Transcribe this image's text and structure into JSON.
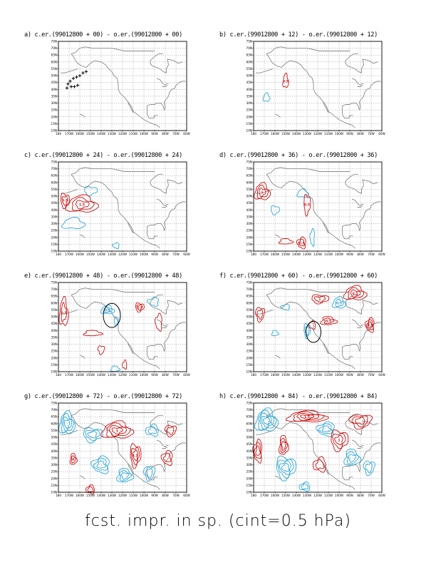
{
  "footer": "fcst. impr. in sp. (cint=0.5 hPa)",
  "colors": {
    "positive": "#cc1111",
    "negative": "#2ea8d8",
    "coast": "#8a8a8a",
    "grid": "#999999",
    "track": "#000000",
    "circle": "#000000"
  },
  "chart_data": [
    {
      "id": "a",
      "type": "contour",
      "title": "a) c.er.(99012800 + 00) - o.er.(99012800 + 00)",
      "lead_hours": 0,
      "x_ticks": [
        "180",
        "170W",
        "160W",
        "150W",
        "140W",
        "130W",
        "120W",
        "110W",
        "100W",
        "90W",
        "80W",
        "70W",
        "60W"
      ],
      "y_ticks": [
        "10N",
        "15N",
        "20N",
        "25N",
        "30N",
        "35N",
        "40N",
        "45N",
        "50N",
        "55N",
        "60N",
        "65N",
        "70N",
        "75N"
      ],
      "xlim": [
        -180,
        -60
      ],
      "ylim": [
        10,
        75
      ],
      "contour_interval_hPa": 0.5,
      "positive": [],
      "negative": [],
      "track": [
        [
          -172,
          41
        ],
        [
          -171,
          44
        ],
        [
          -169,
          46
        ],
        [
          -166,
          48
        ],
        [
          -163,
          49
        ],
        [
          -160,
          50
        ],
        [
          -157,
          52
        ],
        [
          -154,
          53
        ],
        [
          -168,
          42
        ],
        [
          -165,
          42
        ],
        [
          -162,
          43
        ]
      ],
      "circle": null
    },
    {
      "id": "b",
      "type": "contour",
      "title": "b) c.er.(99012800 + 12) - o.er.(99012800 + 12)",
      "lead_hours": 12,
      "x_ticks": [
        "180",
        "170W",
        "160W",
        "150W",
        "140W",
        "130W",
        "120W",
        "110W",
        "100W",
        "90W",
        "80W",
        "70W",
        "60W"
      ],
      "y_ticks": [
        "10N",
        "15N",
        "20N",
        "25N",
        "30N",
        "35N",
        "40N",
        "45N",
        "50N",
        "55N",
        "60N",
        "65N",
        "70N",
        "75N"
      ],
      "xlim": [
        -180,
        -60
      ],
      "ylim": [
        10,
        75
      ],
      "contour_interval_hPa": 0.5,
      "positive": [
        {
          "lon": -150,
          "lat": 46,
          "rx": 2.5,
          "ry": 5,
          "n": 1,
          "label": "0.5"
        }
      ],
      "negative": [
        {
          "lon": -168,
          "lat": 34,
          "rx": 3,
          "ry": 3,
          "n": 1,
          "label": ""
        }
      ],
      "track": [],
      "circle": null
    },
    {
      "id": "c",
      "type": "contour",
      "title": "c) c.er.(99012800 + 24) - o.er.(99012800 + 24)",
      "lead_hours": 24,
      "x_ticks": [
        "180",
        "170W",
        "160W",
        "150W",
        "140W",
        "130W",
        "120W",
        "110W",
        "100W",
        "90W",
        "80W",
        "70W",
        "60W"
      ],
      "y_ticks": [
        "10N",
        "15N",
        "20N",
        "25N",
        "30N",
        "35N",
        "40N",
        "45N",
        "50N",
        "55N",
        "60N",
        "65N",
        "70N",
        "75N"
      ],
      "xlim": [
        -180,
        -60
      ],
      "ylim": [
        10,
        75
      ],
      "contour_interval_hPa": 0.5,
      "positive": [
        {
          "lon": -158,
          "lat": 44,
          "rx": 14,
          "ry": 6,
          "n": 3,
          "label": "1.5"
        },
        {
          "lon": -174,
          "lat": 47,
          "rx": 4,
          "ry": 5,
          "n": 2,
          "label": "0.5"
        }
      ],
      "negative": [
        {
          "lon": -166,
          "lat": 30,
          "rx": 10,
          "ry": 4,
          "n": 1,
          "label": ""
        },
        {
          "lon": -150,
          "lat": 54,
          "rx": 6,
          "ry": 3,
          "n": 1,
          "label": ""
        },
        {
          "lon": -126,
          "lat": 14,
          "rx": 3,
          "ry": 2,
          "n": 1,
          "label": ""
        }
      ],
      "track": [],
      "circle": null
    },
    {
      "id": "d",
      "type": "contour",
      "title": "d) c.er.(99012800 + 36) - o.er.(99012800 + 36)",
      "lead_hours": 36,
      "x_ticks": [
        "180",
        "170W",
        "160W",
        "150W",
        "140W",
        "130W",
        "120W",
        "110W",
        "100W",
        "90W",
        "80W",
        "70W",
        "60W"
      ],
      "y_ticks": [
        "10N",
        "15N",
        "20N",
        "25N",
        "30N",
        "35N",
        "40N",
        "45N",
        "50N",
        "55N",
        "60N",
        "65N",
        "70N",
        "75N"
      ],
      "xlim": [
        -180,
        -60
      ],
      "ylim": [
        10,
        75
      ],
      "contour_interval_hPa": 0.5,
      "positive": [
        {
          "lon": -172,
          "lat": 53,
          "rx": 7,
          "ry": 6,
          "n": 3,
          "label": "1"
        },
        {
          "lon": -130,
          "lat": 44,
          "rx": 3,
          "ry": 7,
          "n": 1,
          "label": "0.5"
        },
        {
          "lon": -135,
          "lat": 16,
          "rx": 4,
          "ry": 4,
          "n": 2,
          "label": "0.5"
        },
        {
          "lon": -150,
          "lat": 17,
          "rx": 6,
          "ry": 2,
          "n": 1,
          "label": ""
        }
      ],
      "negative": [
        {
          "lon": -134,
          "lat": 52,
          "rx": 5,
          "ry": 3,
          "n": 1,
          "label": ""
        },
        {
          "lon": -160,
          "lat": 40,
          "rx": 4,
          "ry": 3,
          "n": 1,
          "label": ""
        },
        {
          "lon": -125,
          "lat": 20,
          "rx": 2,
          "ry": 6,
          "n": 1,
          "label": ""
        }
      ],
      "track": [],
      "circle": null
    },
    {
      "id": "e",
      "type": "contour",
      "title": "e) c.er.(99012800 + 48) - o.er.(99012800 + 48)",
      "lead_hours": 48,
      "x_ticks": [
        "180",
        "170W",
        "160W",
        "150W",
        "140W",
        "130W",
        "120W",
        "110W",
        "100W",
        "90W",
        "80W",
        "70W",
        "60W"
      ],
      "y_ticks": [
        "10N",
        "15N",
        "20N",
        "25N",
        "30N",
        "35N",
        "40N",
        "45N",
        "50N",
        "55N",
        "60N",
        "65N",
        "70N",
        "75N"
      ],
      "xlim": [
        -180,
        -60
      ],
      "ylim": [
        10,
        75
      ],
      "contour_interval_hPa": 0.5,
      "positive": [
        {
          "lon": -175,
          "lat": 53,
          "rx": 4,
          "ry": 10,
          "n": 2,
          "label": "0.5"
        },
        {
          "lon": -104,
          "lat": 57,
          "rx": 4,
          "ry": 3,
          "n": 2,
          "label": "0.5"
        },
        {
          "lon": -86,
          "lat": 46,
          "rx": 3,
          "ry": 6,
          "n": 1,
          "label": ""
        },
        {
          "lon": -148,
          "lat": 38,
          "rx": 8,
          "ry": 2,
          "n": 1,
          "label": ""
        },
        {
          "lon": -140,
          "lat": 26,
          "rx": 3,
          "ry": 3,
          "n": 1,
          "label": ""
        },
        {
          "lon": -118,
          "lat": 15,
          "rx": 2,
          "ry": 3,
          "n": 1,
          "label": ""
        }
      ],
      "negative": [
        {
          "lon": -134,
          "lat": 55,
          "rx": 6,
          "ry": 3,
          "n": 2,
          "label": "0.5"
        },
        {
          "lon": -126,
          "lat": 47,
          "rx": 2,
          "ry": 3,
          "n": 1,
          "label": ""
        },
        {
          "lon": -91,
          "lat": 61,
          "rx": 5,
          "ry": 3,
          "n": 1,
          "label": ""
        },
        {
          "lon": -127,
          "lat": 12,
          "rx": 4,
          "ry": 2,
          "n": 1,
          "label": ""
        }
      ],
      "track": [],
      "circle": {
        "lon": -130,
        "lat": 51,
        "r": 8
      }
    },
    {
      "id": "f",
      "type": "contour",
      "title": "f) c.er.(99012800 + 60) - o.er.(99012800 + 60)",
      "lead_hours": 60,
      "x_ticks": [
        "180",
        "170W",
        "160W",
        "150W",
        "140W",
        "130W",
        "120W",
        "110W",
        "100W",
        "90W",
        "80W",
        "70W",
        "60W"
      ],
      "y_ticks": [
        "10N",
        "15N",
        "20N",
        "25N",
        "30N",
        "35N",
        "40N",
        "45N",
        "50N",
        "55N",
        "60N",
        "65N",
        "70N",
        "75N"
      ],
      "xlim": [
        -180,
        -60
      ],
      "ylim": [
        10,
        75
      ],
      "contour_interval_hPa": 0.5,
      "positive": [
        {
          "lon": -85,
          "lat": 67,
          "rx": 10,
          "ry": 5,
          "n": 3,
          "label": "0.5"
        },
        {
          "lon": -118,
          "lat": 63,
          "rx": 8,
          "ry": 3,
          "n": 2,
          "label": "1"
        },
        {
          "lon": -71,
          "lat": 44,
          "rx": 4,
          "ry": 5,
          "n": 3,
          "label": "0.5"
        },
        {
          "lon": -110,
          "lat": 47,
          "rx": 7,
          "ry": 3,
          "n": 2,
          "label": "0.5"
        },
        {
          "lon": -174,
          "lat": 52,
          "rx": 4,
          "ry": 5,
          "n": 2,
          "label": ""
        },
        {
          "lon": -125,
          "lat": 44,
          "rx": 3,
          "ry": 3,
          "n": 1,
          "label": ""
        }
      ],
      "negative": [
        {
          "lon": -100,
          "lat": 60,
          "rx": 6,
          "ry": 4,
          "n": 2,
          "label": "0.5"
        },
        {
          "lon": -130,
          "lat": 40,
          "rx": 3,
          "ry": 5,
          "n": 2,
          "label": ""
        },
        {
          "lon": -150,
          "lat": 57,
          "rx": 4,
          "ry": 2,
          "n": 1,
          "label": ""
        },
        {
          "lon": -160,
          "lat": 38,
          "rx": 3,
          "ry": 2,
          "n": 1,
          "label": ""
        }
      ],
      "track": [],
      "circle": {
        "lon": -124,
        "lat": 39,
        "r": 7
      }
    },
    {
      "id": "g",
      "type": "contour",
      "title": "g) c.er.(99012800 + 72) - o.er.(99012800 + 72)",
      "lead_hours": 72,
      "x_ticks": [
        "180",
        "170W",
        "160W",
        "150W",
        "140W",
        "130W",
        "120W",
        "110W",
        "100W",
        "90W",
        "80W",
        "70W",
        "60W"
      ],
      "y_ticks": [
        "10N",
        "15N",
        "20N",
        "25N",
        "30N",
        "35N",
        "40N",
        "45N",
        "50N",
        "55N",
        "60N",
        "65N",
        "70N",
        "75N"
      ],
      "xlim": [
        -180,
        -60
      ],
      "ylim": [
        10,
        75
      ],
      "contour_interval_hPa": 0.5,
      "positive": [
        {
          "lon": -125,
          "lat": 55,
          "rx": 14,
          "ry": 6,
          "n": 4,
          "label": "1"
        },
        {
          "lon": -108,
          "lat": 37,
          "rx": 5,
          "ry": 8,
          "n": 3,
          "label": "1.5"
        },
        {
          "lon": -78,
          "lat": 35,
          "rx": 5,
          "ry": 5,
          "n": 2,
          "label": ""
        },
        {
          "lon": -166,
          "lat": 34,
          "rx": 3,
          "ry": 4,
          "n": 2,
          "label": "0"
        },
        {
          "lon": -75,
          "lat": 55,
          "rx": 5,
          "ry": 4,
          "n": 2,
          "label": ""
        },
        {
          "lon": -150,
          "lat": 12,
          "rx": 4,
          "ry": 3,
          "n": 2,
          "label": ""
        }
      ],
      "negative": [
        {
          "lon": -172,
          "lat": 60,
          "rx": 7,
          "ry": 8,
          "n": 4,
          "label": ""
        },
        {
          "lon": -148,
          "lat": 52,
          "rx": 9,
          "ry": 5,
          "n": 3,
          "label": ""
        },
        {
          "lon": -140,
          "lat": 30,
          "rx": 8,
          "ry": 6,
          "n": 3,
          "label": ""
        },
        {
          "lon": -118,
          "lat": 22,
          "rx": 7,
          "ry": 5,
          "n": 3,
          "label": ""
        },
        {
          "lon": -95,
          "lat": 24,
          "rx": 5,
          "ry": 5,
          "n": 2,
          "label": ""
        },
        {
          "lon": -92,
          "lat": 55,
          "rx": 6,
          "ry": 4,
          "n": 2,
          "label": ""
        }
      ],
      "track": [],
      "circle": null
    },
    {
      "id": "h",
      "type": "contour",
      "title": "h) c.er.(99012800 + 84) - o.er.(99012800 + 84)",
      "lead_hours": 84,
      "x_ticks": [
        "180",
        "170W",
        "160W",
        "150W",
        "140W",
        "130W",
        "120W",
        "110W",
        "100W",
        "90W",
        "80W",
        "70W",
        "60W"
      ],
      "y_ticks": [
        "10N",
        "15N",
        "20N",
        "25N",
        "30N",
        "35N",
        "40N",
        "45N",
        "50N",
        "55N",
        "60N",
        "65N",
        "70N",
        "75N"
      ],
      "xlim": [
        -180,
        -60
      ],
      "ylim": [
        10,
        75
      ],
      "contour_interval_hPa": 0.5,
      "positive": [
        {
          "lon": -130,
          "lat": 65,
          "rx": 18,
          "ry": 4,
          "n": 4,
          "label": "1.5"
        },
        {
          "lon": -100,
          "lat": 48,
          "rx": 8,
          "ry": 7,
          "n": 3,
          "label": "1"
        },
        {
          "lon": -176,
          "lat": 40,
          "rx": 4,
          "ry": 8,
          "n": 3,
          "label": ""
        },
        {
          "lon": -152,
          "lat": 44,
          "rx": 4,
          "ry": 7,
          "n": 3,
          "label": ""
        },
        {
          "lon": -80,
          "lat": 62,
          "rx": 10,
          "ry": 5,
          "n": 3,
          "label": ""
        },
        {
          "lon": -118,
          "lat": 30,
          "rx": 6,
          "ry": 5,
          "n": 2,
          "label": ""
        }
      ],
      "negative": [
        {
          "lon": -168,
          "lat": 62,
          "rx": 10,
          "ry": 8,
          "n": 5,
          "label": ""
        },
        {
          "lon": -150,
          "lat": 28,
          "rx": 9,
          "ry": 8,
          "n": 4,
          "label": ""
        },
        {
          "lon": -112,
          "lat": 56,
          "rx": 8,
          "ry": 5,
          "n": 3,
          "label": ""
        },
        {
          "lon": -88,
          "lat": 35,
          "rx": 7,
          "ry": 6,
          "n": 3,
          "label": ""
        },
        {
          "lon": -72,
          "lat": 28,
          "rx": 5,
          "ry": 5,
          "n": 2,
          "label": ""
        },
        {
          "lon": -132,
          "lat": 14,
          "rx": 5,
          "ry": 3,
          "n": 2,
          "label": ""
        }
      ],
      "track": [],
      "circle": null
    }
  ]
}
